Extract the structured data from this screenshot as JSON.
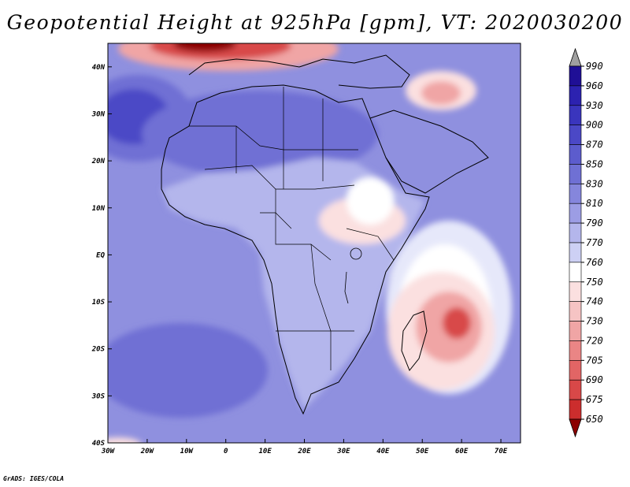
{
  "title": "Geopotential Height at 925hPa [gpm], VT: 2020030200",
  "footer": "GrADS: IGES/COLA",
  "map": {
    "lon_range": [
      -30,
      75
    ],
    "lat_range": [
      -40,
      45
    ],
    "lon_ticks": [
      "30W",
      "20W",
      "10W",
      "0",
      "10E",
      "20E",
      "30E",
      "40E",
      "50E",
      "60E",
      "70E"
    ],
    "lat_ticks": [
      "40N",
      "30N",
      "20N",
      "10N",
      "EQ",
      "10S",
      "20S",
      "30S",
      "40S"
    ]
  },
  "colorbar": {
    "levels": [
      "990",
      "960",
      "930",
      "900",
      "870",
      "850",
      "830",
      "810",
      "790",
      "770",
      "760",
      "750",
      "740",
      "730",
      "720",
      "705",
      "690",
      "675",
      "650"
    ],
    "colors": [
      "#1f0f96",
      "#2c22b0",
      "#3a35bd",
      "#4b48c6",
      "#5c5ccd",
      "#6f70d4",
      "#8586dc",
      "#9c9de4",
      "#b4b6ec",
      "#cdd0f4",
      "#ffffff",
      "#fbe0e0",
      "#f6c4c4",
      "#f0a5a5",
      "#ea8585",
      "#e26565",
      "#d84848",
      "#cc2d2d",
      "#b41414",
      "#8c0000"
    ],
    "arrow_top": "#a0a0a0"
  },
  "field": {
    "background": "#8f90df",
    "colors": {
      "deep_blue": "#4b48c6",
      "mid_blue": "#6f70d4",
      "light_blue": "#b4b6ec",
      "pale": "#e6e8fa",
      "white": "#ffffff",
      "pink": "#fbe0e0",
      "rose": "#f0a5a5",
      "red": "#d84848",
      "dark_red": "#8c0000"
    }
  }
}
